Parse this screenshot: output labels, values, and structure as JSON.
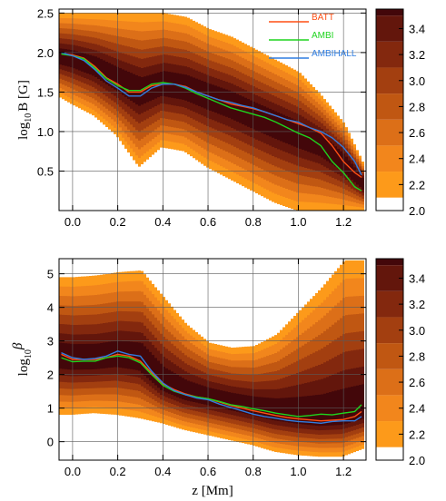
{
  "chart_data": [
    {
      "type": "heatmap",
      "panel": "top",
      "ylabel_parts": [
        "log",
        "10",
        "B [G]"
      ],
      "xlabel": "",
      "xlim": [
        -0.06,
        1.3
      ],
      "ylim": [
        0.0,
        2.55
      ],
      "xticks": [
        0.0,
        0.2,
        0.4,
        0.6,
        0.8,
        1.0,
        1.2
      ],
      "xtick_labels": [
        "0.0",
        "0.2",
        "0.4",
        "0.6",
        "0.8",
        "1.0",
        "1.2"
      ],
      "yticks": [
        0.5,
        1.0,
        1.5,
        2.0,
        2.5
      ],
      "ytick_labels": [
        "0.5",
        "1.0",
        "1.5",
        "2.0",
        "2.5"
      ],
      "grid": true,
      "legend_position": "top-right",
      "density": {
        "x": [
          -0.06,
          0.0,
          0.1,
          0.2,
          0.3,
          0.4,
          0.5,
          0.6,
          0.7,
          0.8,
          0.9,
          1.0,
          1.1,
          1.2,
          1.3
        ],
        "lower": [
          1.45,
          1.35,
          1.2,
          0.95,
          0.55,
          0.8,
          0.75,
          0.55,
          0.4,
          0.25,
          0.1,
          0.0,
          0.0,
          0.0,
          0.0
        ],
        "upper": [
          2.5,
          2.5,
          2.5,
          2.5,
          2.5,
          2.5,
          2.45,
          2.3,
          2.2,
          2.05,
          1.9,
          1.75,
          1.45,
          1.1,
          0.5
        ],
        "center": [
          1.95,
          1.92,
          1.82,
          1.65,
          1.5,
          1.6,
          1.55,
          1.45,
          1.35,
          1.22,
          1.1,
          0.98,
          0.85,
          0.62,
          0.3
        ]
      },
      "series": [
        {
          "name": "BATT",
          "color": "#ff4f14",
          "x": [
            -0.05,
            0.0,
            0.05,
            0.1,
            0.15,
            0.2,
            0.25,
            0.3,
            0.35,
            0.4,
            0.45,
            0.5,
            0.55,
            0.6,
            0.65,
            0.7,
            0.75,
            0.8,
            0.85,
            0.9,
            0.95,
            1.0,
            1.05,
            1.1,
            1.15,
            1.2,
            1.25,
            1.28
          ],
          "y": [
            1.99,
            1.97,
            1.93,
            1.82,
            1.68,
            1.6,
            1.5,
            1.5,
            1.58,
            1.6,
            1.6,
            1.57,
            1.5,
            1.45,
            1.4,
            1.35,
            1.32,
            1.29,
            1.25,
            1.2,
            1.15,
            1.1,
            1.05,
            0.98,
            0.82,
            0.62,
            0.48,
            0.42
          ]
        },
        {
          "name": "AMBI",
          "color": "#1ed41e",
          "x": [
            -0.05,
            0.0,
            0.05,
            0.1,
            0.15,
            0.2,
            0.25,
            0.3,
            0.35,
            0.4,
            0.45,
            0.5,
            0.55,
            0.6,
            0.65,
            0.7,
            0.75,
            0.8,
            0.85,
            0.9,
            0.95,
            1.0,
            1.05,
            1.1,
            1.15,
            1.2,
            1.25,
            1.28
          ],
          "y": [
            1.98,
            1.96,
            1.92,
            1.8,
            1.67,
            1.58,
            1.52,
            1.52,
            1.6,
            1.62,
            1.6,
            1.55,
            1.48,
            1.42,
            1.36,
            1.3,
            1.26,
            1.22,
            1.18,
            1.12,
            1.05,
            0.98,
            0.92,
            0.82,
            0.62,
            0.48,
            0.3,
            0.25
          ]
        },
        {
          "name": "AMBIHALL",
          "color": "#2f7de1",
          "x": [
            -0.05,
            0.0,
            0.05,
            0.1,
            0.15,
            0.2,
            0.25,
            0.3,
            0.35,
            0.4,
            0.45,
            0.5,
            0.55,
            0.6,
            0.65,
            0.7,
            0.75,
            0.8,
            0.85,
            0.9,
            0.95,
            1.0,
            1.05,
            1.1,
            1.15,
            1.2,
            1.25,
            1.28
          ],
          "y": [
            2.0,
            1.96,
            1.9,
            1.78,
            1.64,
            1.55,
            1.45,
            1.45,
            1.55,
            1.6,
            1.6,
            1.56,
            1.5,
            1.45,
            1.4,
            1.37,
            1.33,
            1.3,
            1.25,
            1.2,
            1.15,
            1.12,
            1.05,
            1.0,
            0.92,
            0.8,
            0.62,
            0.45
          ]
        }
      ],
      "colorbar": {
        "levels": [
          2.0,
          2.2,
          2.4,
          2.6,
          2.8,
          3.0,
          3.2,
          3.4
        ],
        "tick_labels": [
          "2.0",
          "2.2",
          "2.4",
          "2.6",
          "2.8",
          "3.0",
          "3.2",
          "3.4"
        ],
        "max": 3.55,
        "colors": [
          "#ffffff",
          "#fd9a1a",
          "#f2861c",
          "#dc6f18",
          "#c05712",
          "#a33f10",
          "#83280e",
          "#63160c",
          "#43070a"
        ]
      }
    },
    {
      "type": "heatmap",
      "panel": "bottom",
      "ylabel_parts": [
        "log",
        "10",
        "β"
      ],
      "xlabel": "z [Mm]",
      "xlim": [
        -0.06,
        1.3
      ],
      "ylim": [
        -0.55,
        5.45
      ],
      "xticks": [
        0.0,
        0.2,
        0.4,
        0.6,
        0.8,
        1.0,
        1.2
      ],
      "xtick_labels": [
        "0.0",
        "0.2",
        "0.4",
        "0.6",
        "0.8",
        "1.0",
        "1.2"
      ],
      "yticks": [
        0,
        1,
        2,
        3,
        4,
        5
      ],
      "ytick_labels": [
        "0",
        "1",
        "2",
        "3",
        "4",
        "5"
      ],
      "grid": true,
      "density": {
        "x": [
          -0.06,
          0.0,
          0.1,
          0.2,
          0.3,
          0.4,
          0.5,
          0.6,
          0.7,
          0.8,
          0.9,
          1.0,
          1.1,
          1.2,
          1.3
        ],
        "lower": [
          0.8,
          0.8,
          0.85,
          0.8,
          0.7,
          0.55,
          0.35,
          0.2,
          0.05,
          -0.1,
          -0.3,
          -0.4,
          -0.45,
          -0.45,
          -0.2
        ],
        "upper": [
          4.9,
          4.9,
          4.95,
          5.05,
          5.1,
          4.3,
          3.5,
          2.95,
          2.8,
          2.85,
          3.2,
          3.9,
          4.6,
          5.4,
          5.4
        ],
        "center": [
          2.5,
          2.45,
          2.45,
          2.55,
          2.45,
          1.75,
          1.45,
          1.3,
          1.15,
          1.0,
          0.85,
          0.75,
          0.68,
          0.72,
          0.9
        ]
      },
      "series": [
        {
          "name": "BATT",
          "color": "#ff4f14",
          "x": [
            -0.05,
            0.0,
            0.05,
            0.1,
            0.15,
            0.2,
            0.25,
            0.3,
            0.35,
            0.4,
            0.45,
            0.5,
            0.55,
            0.6,
            0.65,
            0.7,
            0.75,
            0.8,
            0.85,
            0.9,
            0.95,
            1.0,
            1.05,
            1.1,
            1.15,
            1.2,
            1.25,
            1.28
          ],
          "y": [
            2.6,
            2.45,
            2.45,
            2.45,
            2.5,
            2.6,
            2.55,
            2.4,
            2.05,
            1.72,
            1.55,
            1.42,
            1.33,
            1.28,
            1.18,
            1.08,
            1.0,
            0.92,
            0.85,
            0.78,
            0.72,
            0.68,
            0.65,
            0.62,
            0.64,
            0.66,
            0.75,
            0.9
          ]
        },
        {
          "name": "AMBI",
          "color": "#1ed41e",
          "x": [
            -0.05,
            0.0,
            0.05,
            0.1,
            0.15,
            0.2,
            0.25,
            0.3,
            0.35,
            0.4,
            0.45,
            0.5,
            0.55,
            0.6,
            0.65,
            0.7,
            0.75,
            0.8,
            0.85,
            0.9,
            0.95,
            1.0,
            1.05,
            1.1,
            1.15,
            1.2,
            1.25,
            1.28
          ],
          "y": [
            2.5,
            2.38,
            2.4,
            2.4,
            2.5,
            2.55,
            2.5,
            2.35,
            2.0,
            1.68,
            1.5,
            1.4,
            1.33,
            1.28,
            1.2,
            1.1,
            1.05,
            0.98,
            0.92,
            0.85,
            0.8,
            0.75,
            0.78,
            0.82,
            0.8,
            0.85,
            0.9,
            1.1
          ]
        },
        {
          "name": "AMBIHALL",
          "color": "#2f7de1",
          "x": [
            -0.05,
            0.0,
            0.05,
            0.1,
            0.15,
            0.2,
            0.25,
            0.3,
            0.35,
            0.4,
            0.45,
            0.5,
            0.55,
            0.6,
            0.65,
            0.7,
            0.75,
            0.8,
            0.85,
            0.9,
            0.95,
            1.0,
            1.05,
            1.1,
            1.15,
            1.2,
            1.25,
            1.28
          ],
          "y": [
            2.65,
            2.5,
            2.45,
            2.48,
            2.55,
            2.7,
            2.6,
            2.55,
            2.1,
            1.75,
            1.52,
            1.4,
            1.3,
            1.25,
            1.12,
            1.02,
            0.92,
            0.82,
            0.75,
            0.7,
            0.64,
            0.6,
            0.58,
            0.55,
            0.6,
            0.62,
            0.62,
            0.75
          ]
        }
      ],
      "colorbar": {
        "levels": [
          2.0,
          2.2,
          2.4,
          2.6,
          2.8,
          3.0,
          3.2,
          3.4
        ],
        "tick_labels": [
          "2.0",
          "2.2",
          "2.4",
          "2.6",
          "2.8",
          "3.0",
          "3.2",
          "3.4"
        ],
        "max": 3.55,
        "colors": [
          "#ffffff",
          "#fd9a1a",
          "#f2861c",
          "#dc6f18",
          "#c05712",
          "#a33f10",
          "#83280e",
          "#63160c",
          "#43070a"
        ]
      }
    }
  ]
}
